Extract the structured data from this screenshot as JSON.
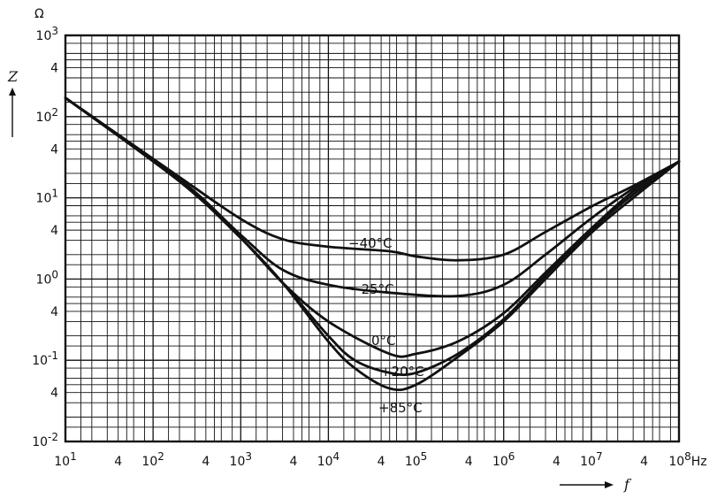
{
  "chart_data": {
    "type": "line",
    "x_scale": "log",
    "y_scale": "log",
    "xlim": [
      10,
      100000000
    ],
    "ylim": [
      0.01,
      1000
    ],
    "grid": true,
    "x_unit": "Hz",
    "y_unit": "Ω",
    "xlabel": "f",
    "ylabel": "Z",
    "x_tick_labels": [
      "10^1",
      "4",
      "10^2",
      "4",
      "10^3",
      "4",
      "10^4",
      "4",
      "10^5",
      "4",
      "10^6",
      "4",
      "10^7",
      "4",
      "10^8"
    ],
    "y_tick_labels": [
      "10^3",
      "4",
      "10^2",
      "4",
      "10^1",
      "4",
      "10^0",
      "4",
      "10^-1",
      "4",
      "10^-2"
    ],
    "series": [
      {
        "name": "−40°C",
        "x": [
          10,
          200,
          1000,
          3000,
          10000,
          50000,
          100000,
          300000,
          1000000,
          3000000,
          10000000,
          30000000,
          100000000
        ],
        "y": [
          170,
          18,
          5.5,
          3.1,
          2.5,
          2.2,
          1.9,
          1.7,
          2.0,
          3.8,
          7.8,
          14,
          28
        ]
      },
      {
        "name": "−25°C",
        "x": [
          10,
          200,
          1000,
          3000,
          10000,
          50000,
          300000,
          1000000,
          3000000,
          10000000,
          30000000,
          100000000
        ],
        "y": [
          170,
          17,
          3.5,
          1.3,
          0.85,
          0.68,
          0.62,
          0.85,
          2.0,
          5.6,
          13,
          28
        ]
      },
      {
        "name": "0°C",
        "x": [
          10,
          200,
          1000,
          3000,
          10000,
          50000,
          100000,
          300000,
          1000000,
          3000000,
          10000000,
          30000000,
          100000000
        ],
        "y": [
          170,
          16,
          3.2,
          0.9,
          0.3,
          0.12,
          0.12,
          0.17,
          0.38,
          1.2,
          4.2,
          12,
          28
        ]
      },
      {
        "name": "+20°C",
        "x": [
          10,
          200,
          1000,
          3000,
          10000,
          20000,
          50000,
          100000,
          300000,
          1000000,
          3000000,
          10000000,
          30000000,
          100000000
        ],
        "y": [
          170,
          16,
          3.2,
          0.9,
          0.2,
          0.1,
          0.07,
          0.07,
          0.12,
          0.32,
          1.1,
          4.0,
          11,
          28
        ]
      },
      {
        "name": "+85°C",
        "x": [
          10,
          200,
          1000,
          3000,
          10000,
          20000,
          50000,
          100000,
          300000,
          1000000,
          3000000,
          10000000,
          30000000,
          100000000
        ],
        "y": [
          170,
          16,
          3.2,
          0.9,
          0.17,
          0.08,
          0.045,
          0.05,
          0.11,
          0.3,
          1.0,
          3.7,
          10,
          28
        ]
      }
    ],
    "colors": {
      "line": "#111111",
      "grid": "#111111",
      "background": "#ffffff"
    }
  }
}
